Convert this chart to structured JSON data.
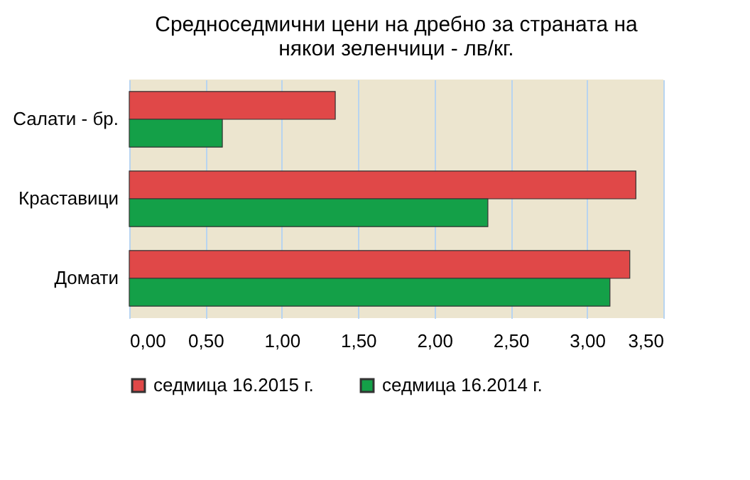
{
  "chart_data": {
    "type": "bar",
    "orientation": "horizontal",
    "title": "Средноседмични цени на дребно за страната на някои зеленчици - лв/кг.",
    "categories": [
      "Салати - бр.",
      "Краставици",
      "Домати"
    ],
    "series": [
      {
        "name": "седмица 16.2015 г.",
        "color": "#e04848",
        "values": [
          1.35,
          3.32,
          3.28
        ]
      },
      {
        "name": "седмица 16.2014 г.",
        "color": "#14a048",
        "values": [
          0.61,
          2.35,
          3.15
        ]
      }
    ],
    "xlim": [
      0,
      3.5
    ],
    "xticks": [
      {
        "value": 0,
        "label": "0,00"
      },
      {
        "value": 0.5,
        "label": "0,50"
      },
      {
        "value": 1,
        "label": "1,00"
      },
      {
        "value": 1.5,
        "label": "1,50"
      },
      {
        "value": 2,
        "label": "2,00"
      },
      {
        "value": 2.5,
        "label": "2,50"
      },
      {
        "value": 3,
        "label": "3,00"
      },
      {
        "value": 3.5,
        "label": "3,50"
      }
    ],
    "grid": "x",
    "legend": "bottom"
  }
}
